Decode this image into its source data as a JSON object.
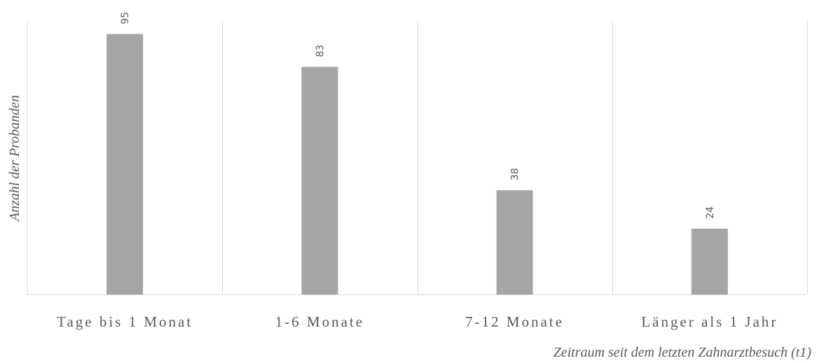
{
  "chart_data": {
    "type": "bar",
    "categories": [
      "Tage bis 1 Monat",
      "1-6 Monate",
      "7-12 Monate",
      "Länger als 1 Jahr"
    ],
    "values": [
      95,
      83,
      38,
      24
    ],
    "ylim": [
      0,
      100
    ],
    "xlabel": "Zeitraum seit dem letzten Zahnarztbesuch (t1)",
    "ylabel": "Anzahl der Probanden",
    "grid": false,
    "legend": "none",
    "data_labels": true,
    "bar_color": "#a5a5a5",
    "divider_color": "#d9d9d9",
    "text_color": "#595959"
  }
}
